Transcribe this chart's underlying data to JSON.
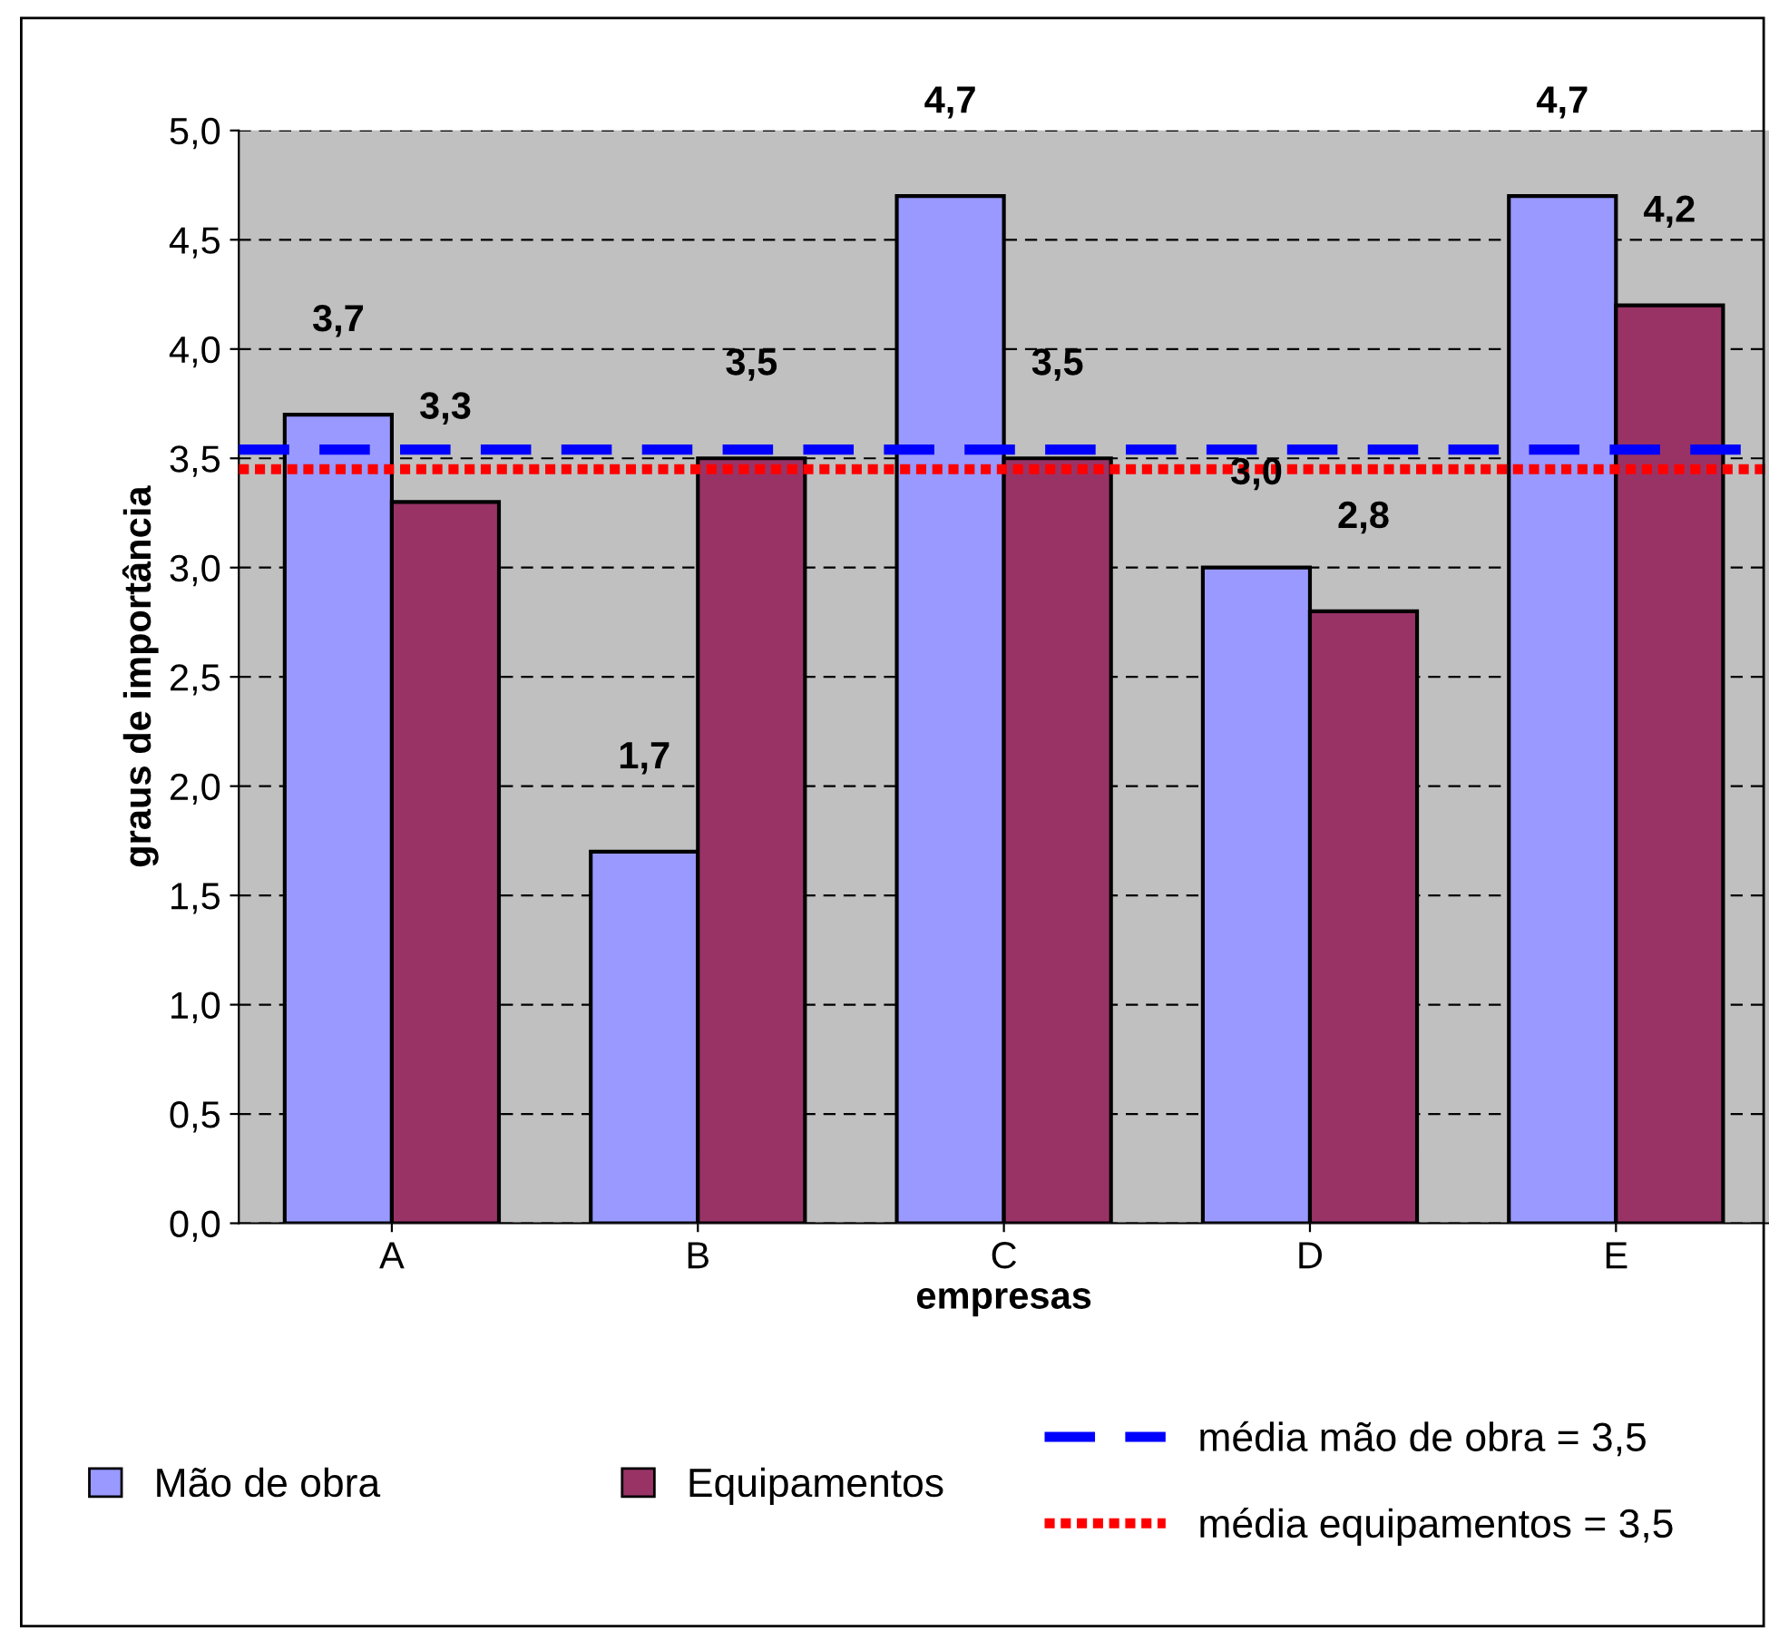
{
  "chart_data": {
    "type": "bar",
    "xlabel": "empresas",
    "ylabel": "graus de importância",
    "categories": [
      "A",
      "B",
      "C",
      "D",
      "E"
    ],
    "series": [
      {
        "name": "Mão de obra",
        "color": "#9999ff",
        "values": [
          3.7,
          1.7,
          4.7,
          3.0,
          4.7
        ],
        "value_labels": [
          "3,7",
          "1,7",
          "4,7",
          "3,0",
          "4,7"
        ]
      },
      {
        "name": "Equipamentos",
        "color": "#993366",
        "values": [
          3.3,
          3.5,
          3.5,
          2.8,
          4.2
        ],
        "value_labels": [
          "3,3",
          "3,5",
          "3,5",
          "2,8",
          "4,2"
        ]
      }
    ],
    "ylim": [
      0,
      5
    ],
    "yticks": [
      {
        "value": 0,
        "label": "0,0"
      },
      {
        "value": 0.5,
        "label": "0,5"
      },
      {
        "value": 1,
        "label": "1,0"
      },
      {
        "value": 1.5,
        "label": "1,5"
      },
      {
        "value": 2,
        "label": "2,0"
      },
      {
        "value": 2.5,
        "label": "2,5"
      },
      {
        "value": 3,
        "label": "3,0"
      },
      {
        "value": 3.5,
        "label": "3,5"
      },
      {
        "value": 4,
        "label": "4,0"
      },
      {
        "value": 4.5,
        "label": "4,5"
      },
      {
        "value": 5,
        "label": "5,0"
      }
    ],
    "ref_lines": [
      {
        "axis": "y",
        "value": 3.54,
        "label": "média mão de obra = 3,5",
        "color": "#0000ff",
        "line_style": "dashed"
      },
      {
        "axis": "y",
        "value": 3.45,
        "label": "média equipamentos = 3,5",
        "color": "#ff0000",
        "line_style": "dotted"
      }
    ],
    "grid": "y",
    "legend": "bottom"
  }
}
